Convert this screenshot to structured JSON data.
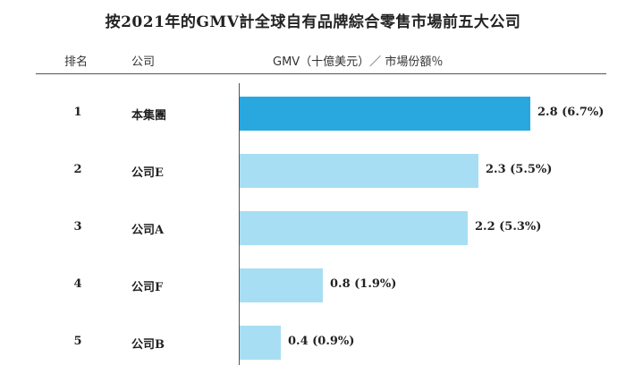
{
  "chart_data": {
    "type": "bar",
    "orientation": "horizontal",
    "title": "按2021年的GMV計全球自有品牌綜合零售市場前五大公司",
    "columns": {
      "rank": "排名",
      "company": "公司",
      "value": "GMV（十億美元）／ 市場份額％"
    },
    "rows": [
      {
        "rank": "1",
        "company": "本集團",
        "value": 2.8,
        "label": "2.8 (6.7%)"
      },
      {
        "rank": "2",
        "company": "公司E",
        "value": 2.3,
        "label": "2.3 (5.5%)"
      },
      {
        "rank": "3",
        "company": "公司A",
        "value": 2.2,
        "label": "2.2 (5.3%)"
      },
      {
        "rank": "4",
        "company": "公司F",
        "value": 0.8,
        "label": "0.8 (1.9%)"
      },
      {
        "rank": "5",
        "company": "公司B",
        "value": 0.4,
        "label": "0.4 (0.9%)"
      }
    ],
    "colors": {
      "highlight": "#29a8e0",
      "default": "#a8def3"
    },
    "highlight_index": 0,
    "xlim": [
      0,
      2.8
    ]
  }
}
